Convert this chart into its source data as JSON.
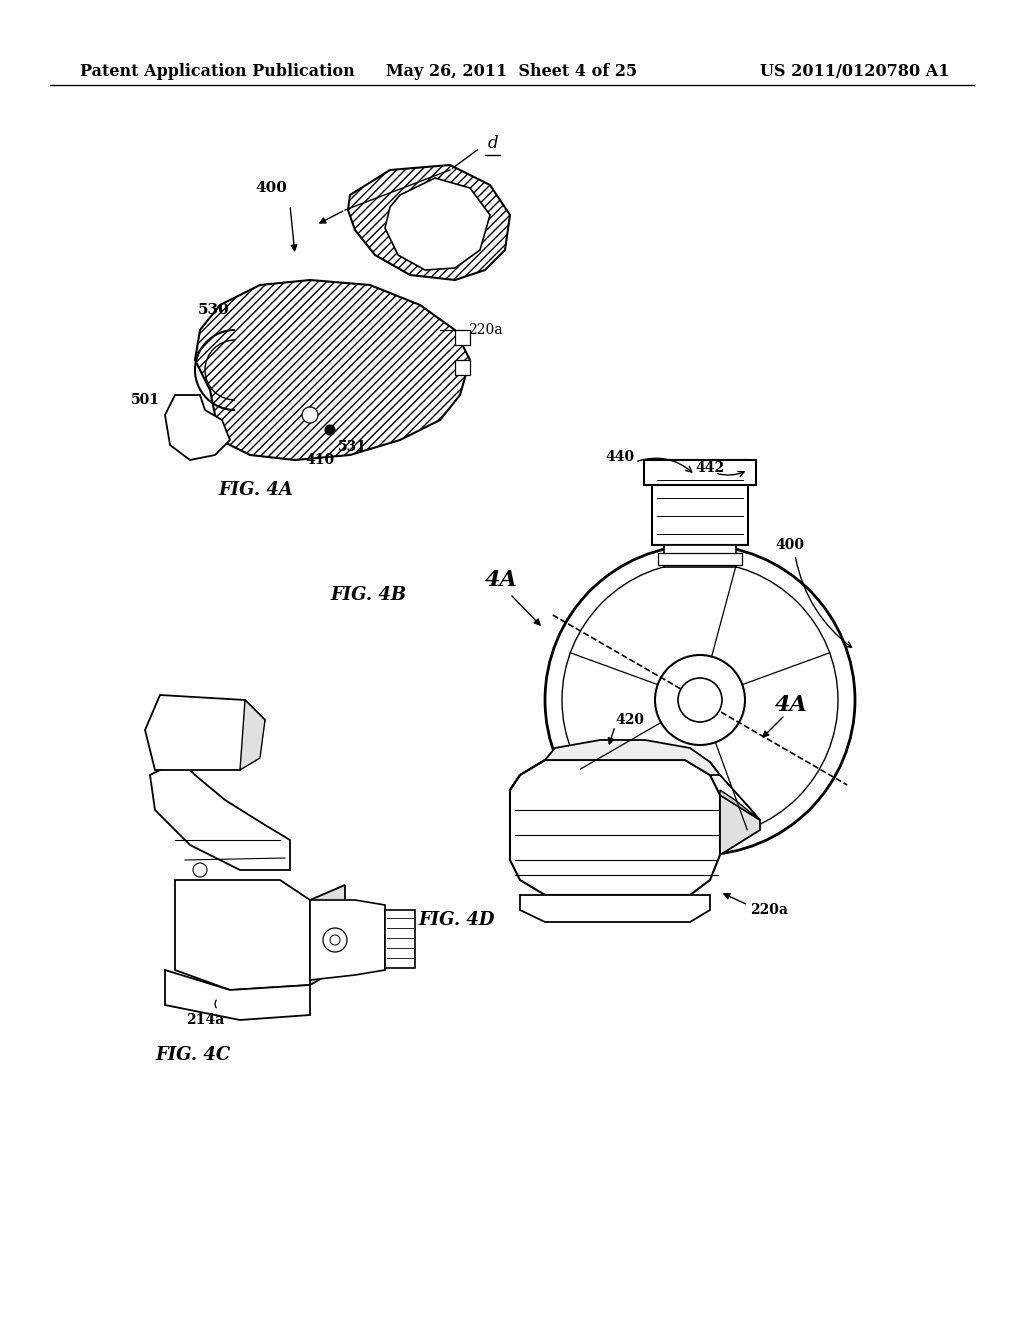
{
  "background_color": "#ffffff",
  "header_left": "Patent Application Publication",
  "header_center": "May 26, 2011  Sheet 4 of 25",
  "header_right": "US 2011/0120780 A1",
  "header_fontsize": 11.5
}
